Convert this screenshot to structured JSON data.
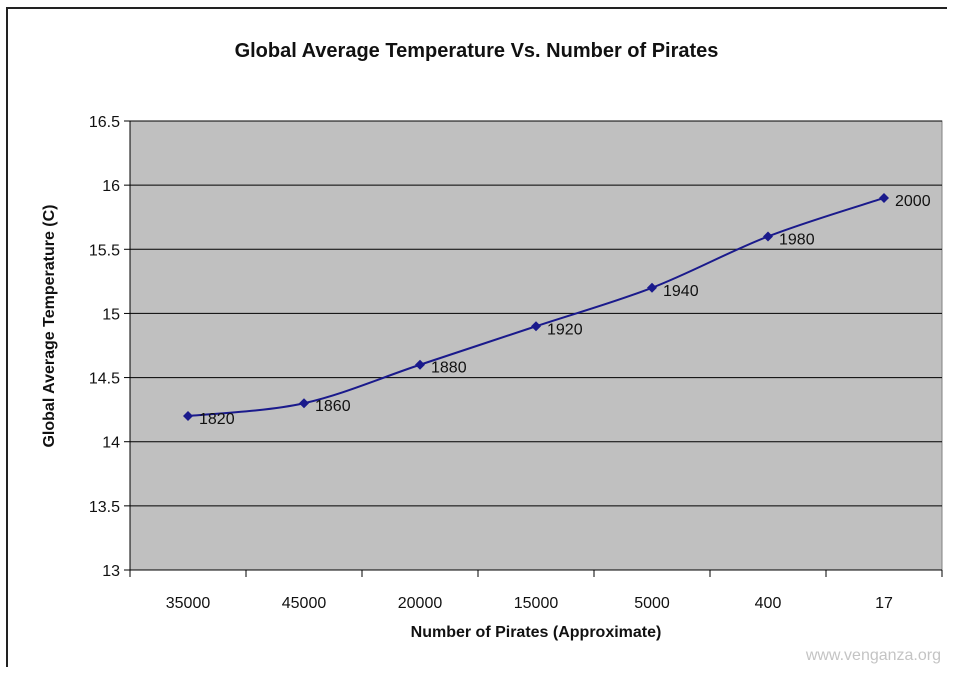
{
  "chart_data": {
    "type": "line",
    "title": "Global Average Temperature Vs. Number of Pirates",
    "xlabel": "Number of Pirates (Approximate)",
    "ylabel": "Global Average Temperature  (C)",
    "categories": [
      "35000",
      "45000",
      "20000",
      "15000",
      "5000",
      "400",
      "17"
    ],
    "series": [
      {
        "values": [
          14.2,
          14.3,
          14.6,
          14.9,
          15.2,
          15.6,
          15.9
        ],
        "point_labels": [
          "1820",
          "1860",
          "1880",
          "1920",
          "1940",
          "1980",
          "2000"
        ],
        "color": "#1a1a8c",
        "marker": "diamond"
      }
    ],
    "ylim": [
      13,
      16.5
    ],
    "yticks": [
      "13",
      "13.5",
      "14",
      "14.5",
      "15",
      "15.5",
      "16",
      "16.5"
    ],
    "grid": true,
    "plot_background": "#c0c0c0",
    "gridline_color": "#000000"
  },
  "watermark": "www.venganza.org"
}
